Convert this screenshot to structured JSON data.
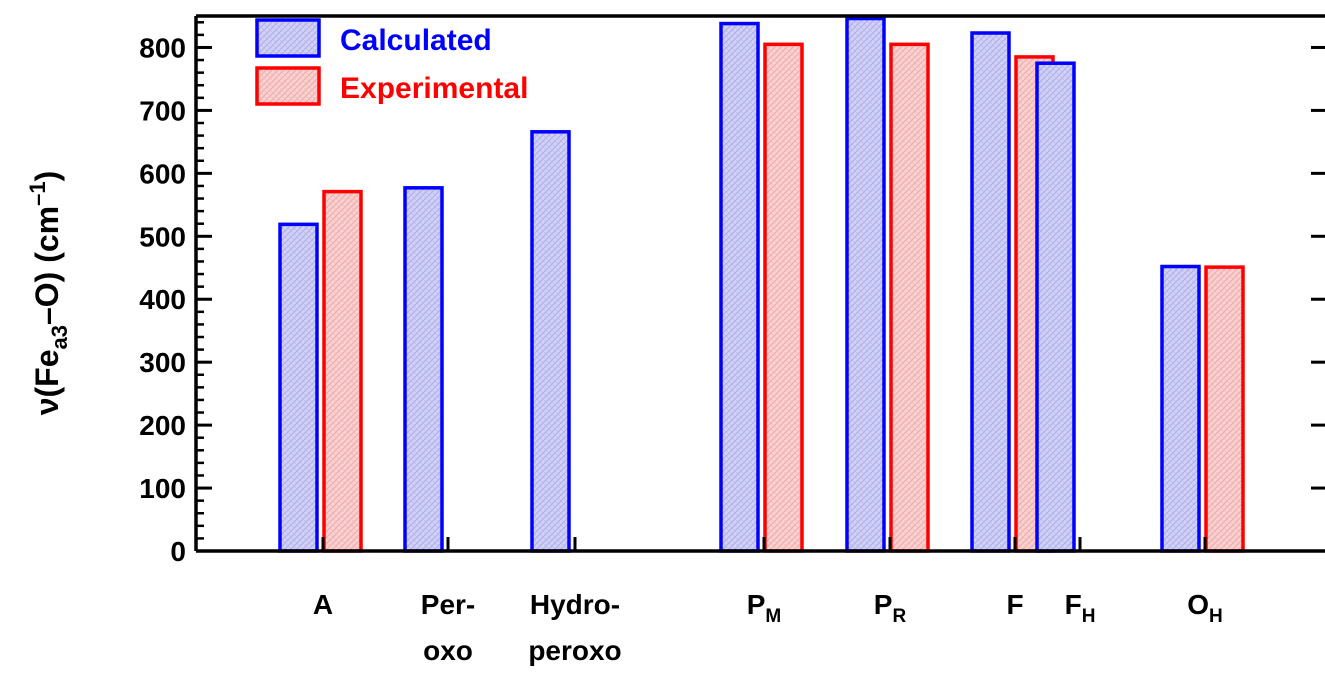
{
  "chart_data": {
    "type": "bar",
    "categories": [
      {
        "lines": [
          "A"
        ],
        "sub": ""
      },
      {
        "lines": [
          "Per-",
          "oxo"
        ],
        "sub": ""
      },
      {
        "lines": [
          "Hydro-",
          "peroxo"
        ],
        "sub": ""
      },
      {
        "lines": [
          "P"
        ],
        "sub": "M"
      },
      {
        "lines": [
          "P"
        ],
        "sub": "R"
      },
      {
        "lines": [
          "F"
        ],
        "sub": ""
      },
      {
        "lines": [
          "F"
        ],
        "sub": "H"
      },
      {
        "lines": [
          "O"
        ],
        "sub": "H"
      }
    ],
    "series": [
      {
        "name": "Calculated",
        "color": "#0000ff",
        "fill": "#ccccf4",
        "values": [
          519,
          577,
          666,
          838,
          846,
          823,
          775,
          452
        ]
      },
      {
        "name": "Experimental",
        "color": "#ff0000",
        "fill": "#f9cccc",
        "values": [
          571,
          null,
          null,
          805,
          805,
          785,
          null,
          451
        ]
      }
    ],
    "ylabel": {
      "prefix": "ν(Fe",
      "sub": "a3",
      "mid": "–O) (cm",
      "sup": "–1",
      "suffix": ")"
    },
    "ylim": [
      0,
      850
    ],
    "yticks": [
      0,
      100,
      200,
      300,
      400,
      500,
      600,
      700,
      800
    ],
    "legend_position": "top-left",
    "grid": false
  }
}
